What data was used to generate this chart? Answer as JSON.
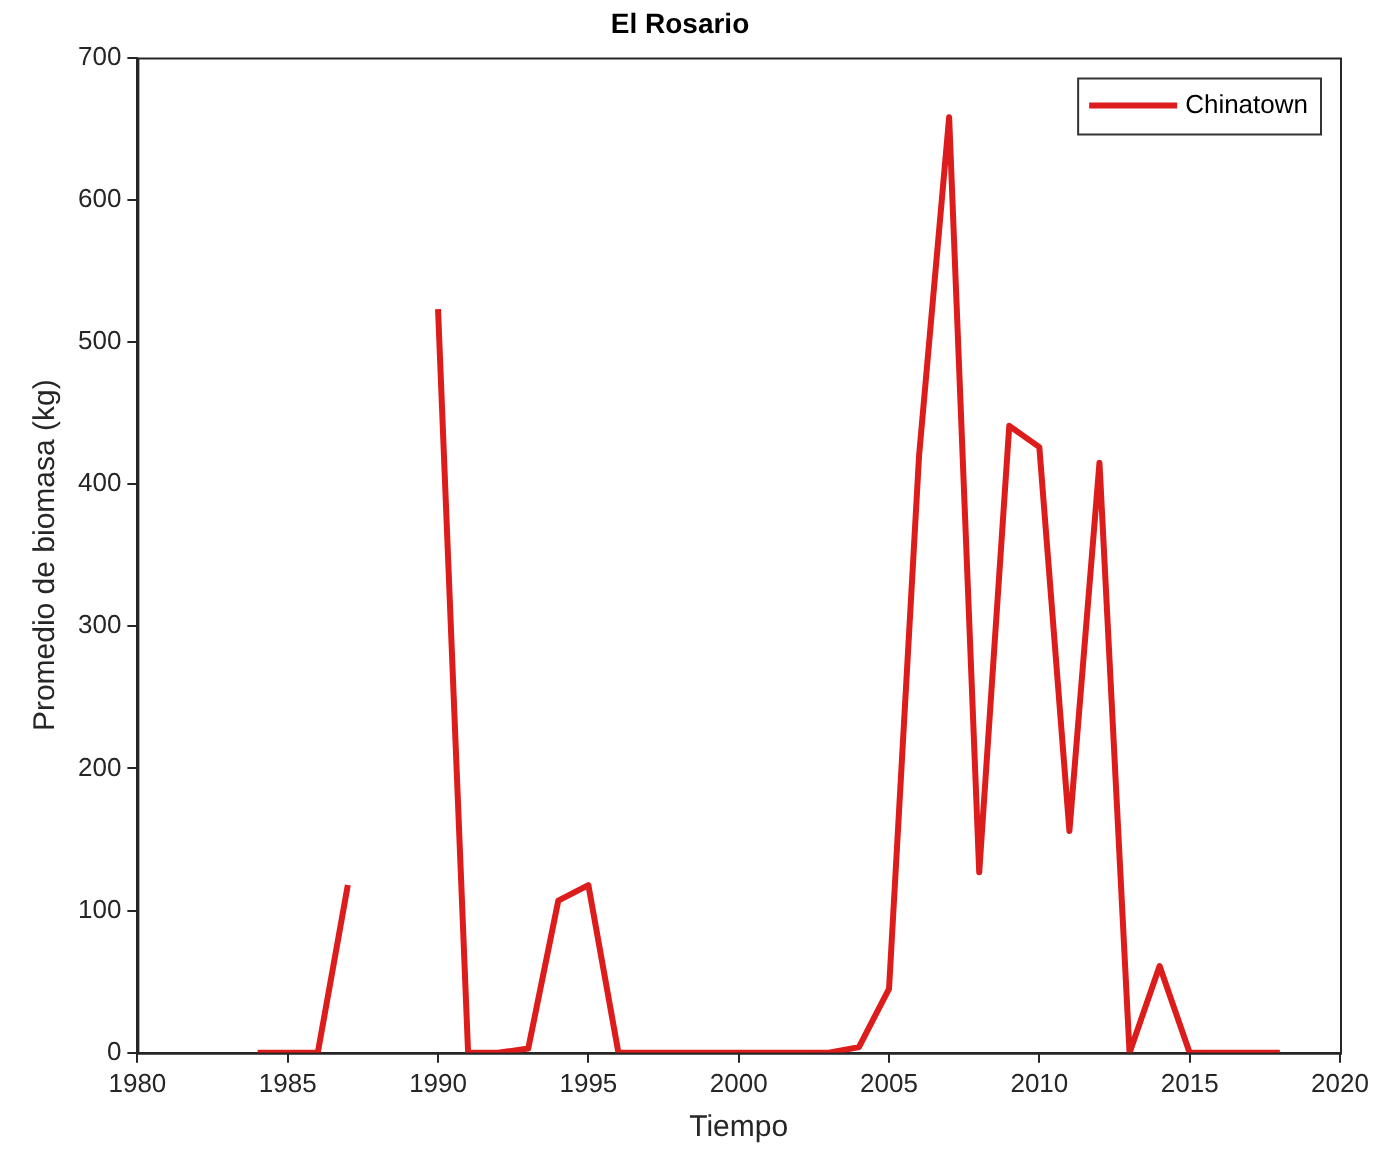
{
  "chart_data": {
    "type": "line",
    "title": "El Rosario",
    "xlabel": "Tiempo",
    "ylabel": "Promedio de biomasa (kg)",
    "x": [
      1984,
      1985,
      1986,
      1987,
      1988,
      1989,
      1990,
      1991,
      1992,
      1993,
      1994,
      1995,
      1996,
      1997,
      1998,
      1999,
      2000,
      2001,
      2002,
      2003,
      2004,
      2005,
      2006,
      2007,
      2008,
      2009,
      2010,
      2011,
      2012,
      2013,
      2014,
      2015,
      2016,
      2017,
      2018
    ],
    "series": [
      {
        "name": "Chinatown",
        "color": "#dd1c1c",
        "values": [
          0,
          0,
          0,
          118,
          null,
          null,
          523,
          0,
          0,
          3,
          107,
          118,
          0,
          0,
          0,
          0,
          0,
          0,
          0,
          0,
          4,
          45,
          420,
          658,
          127,
          441,
          426,
          156,
          415,
          0,
          61,
          0,
          0,
          0,
          0
        ]
      }
    ],
    "xlim": [
      1980,
      2020
    ],
    "xticks": [
      1980,
      1985,
      1990,
      1995,
      2000,
      2005,
      2010,
      2015,
      2020
    ],
    "ylim": [
      0,
      700
    ],
    "yticks": [
      0,
      100,
      200,
      300,
      400,
      500,
      600,
      700
    ],
    "grid": false,
    "legend": "top right",
    "marker": "none",
    "line_style": "solid"
  }
}
